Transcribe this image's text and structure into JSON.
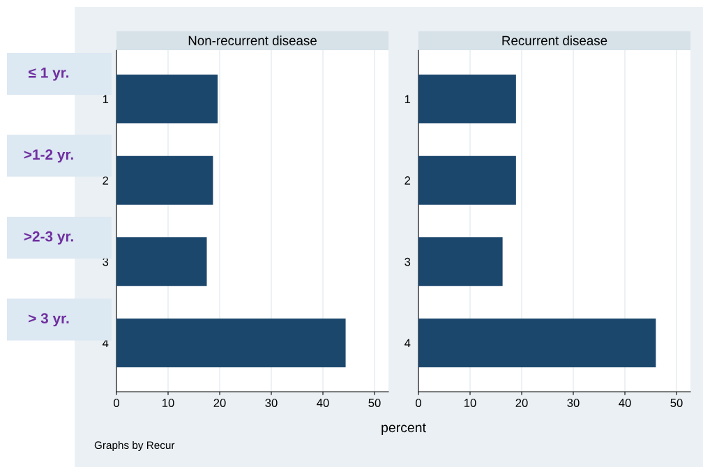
{
  "chart_data": [
    {
      "type": "bar",
      "orientation": "horizontal",
      "title": "Non-recurrent disease",
      "categories": [
        "1",
        "2",
        "3",
        "4"
      ],
      "values": [
        19.6,
        18.7,
        17.5,
        44.4
      ],
      "color": "#1c476d",
      "xlim": [
        0,
        52.7
      ],
      "xticks": [
        0,
        10,
        20,
        30,
        40,
        50
      ],
      "grid": "x",
      "xlabel": "percent",
      "annotations": [
        "≤ 1 yr.",
        ">1-2 yr.",
        ">2-3 yr.",
        "> 3 yr.",
        "Graphs by Recur"
      ]
    },
    {
      "type": "bar",
      "orientation": "horizontal",
      "title": "Recurrent disease",
      "categories": [
        "1",
        "2",
        "3",
        "4"
      ],
      "values": [
        18.9,
        18.9,
        16.3,
        46.0
      ],
      "color": "#1c476d",
      "xlim": [
        0,
        52.7
      ],
      "xticks": [
        0,
        10,
        20,
        30,
        40,
        50
      ],
      "grid": "x"
    }
  ]
}
